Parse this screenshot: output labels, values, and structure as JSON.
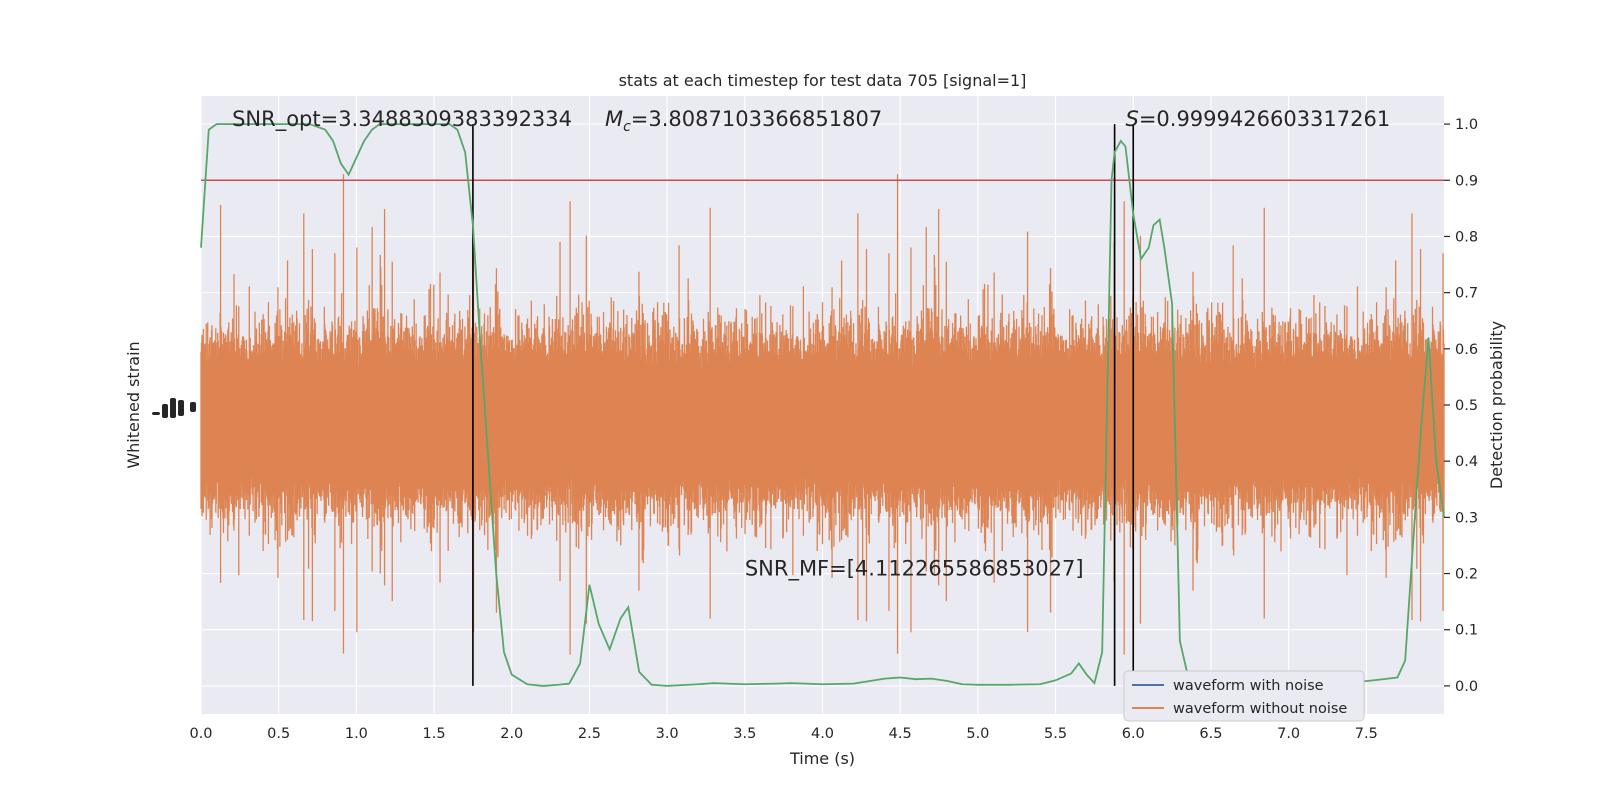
{
  "chart_data": {
    "type": "line",
    "title": "stats at each timestep for test data 705 [signal=1]",
    "xlabel": "Time (s)",
    "ylabel_left": "Whitened strain",
    "ylabel_right": "Detection probability",
    "xlim": [
      0.0,
      8.0
    ],
    "ylim_right": [
      -0.05,
      1.05
    ],
    "x_ticks": [
      "0.0",
      "0.5",
      "1.0",
      "1.5",
      "2.0",
      "2.5",
      "3.0",
      "3.5",
      "4.0",
      "4.5",
      "5.0",
      "5.5",
      "6.0",
      "6.5",
      "7.0",
      "7.5"
    ],
    "y_ticks_right": [
      "0.0",
      "0.1",
      "0.2",
      "0.3",
      "0.4",
      "0.5",
      "0.6",
      "0.7",
      "0.8",
      "0.9",
      "1.0"
    ],
    "grid": true,
    "legend_position": "lower-right",
    "annotations": [
      {
        "text": "SNR_opt=3.3488309383392334",
        "x": 0.2,
        "y": 1.0
      },
      {
        "text": "=3.8087103366851807",
        "prefix": "M",
        "sub": "c",
        "x": 2.6,
        "y": 1.0
      },
      {
        "text": "=0.9999426603317261",
        "prefix": "S",
        "x": 5.95,
        "y": 1.0
      },
      {
        "text": "SNR_MF=[4.112265586853027]",
        "x": 3.5,
        "y": 0.2
      }
    ],
    "threshold": {
      "y": 0.9,
      "color": "#c44e52"
    },
    "vlines": [
      1.75,
      5.88,
      6.0
    ],
    "series": [
      {
        "name": "waveform with noise",
        "color": "#4c72b0",
        "kind": "strain"
      },
      {
        "name": "waveform without noise",
        "color": "#dd8452",
        "kind": "strain"
      },
      {
        "color": "#55a868",
        "kind": "probability",
        "x": [
          0.0,
          0.05,
          0.1,
          0.2,
          0.3,
          0.4,
          0.5,
          0.6,
          0.7,
          0.8,
          0.85,
          0.9,
          0.95,
          1.0,
          1.05,
          1.1,
          1.15,
          1.2,
          1.3,
          1.4,
          1.5,
          1.6,
          1.65,
          1.7,
          1.75,
          1.8,
          1.85,
          1.9,
          1.95,
          2.0,
          2.1,
          2.2,
          2.3,
          2.37,
          2.44,
          2.5,
          2.56,
          2.63,
          2.7,
          2.75,
          2.82,
          2.9,
          3.0,
          3.2,
          3.3,
          3.5,
          3.7,
          3.8,
          4.0,
          4.2,
          4.4,
          4.5,
          4.6,
          4.7,
          4.8,
          4.9,
          5.0,
          5.2,
          5.4,
          5.5,
          5.6,
          5.65,
          5.7,
          5.75,
          5.8,
          5.86,
          5.88,
          5.92,
          5.95,
          6.0,
          6.05,
          6.1,
          6.13,
          6.17,
          6.2,
          6.25,
          6.3,
          6.35,
          6.45,
          6.55,
          6.65,
          6.8,
          7.0,
          7.3,
          7.55,
          7.7,
          7.75,
          7.8,
          7.85,
          7.9,
          7.95,
          8.0
        ],
        "values": [
          0.78,
          0.99,
          1.0,
          1.0,
          1.0,
          1.0,
          1.0,
          1.0,
          1.0,
          0.99,
          0.97,
          0.93,
          0.91,
          0.94,
          0.97,
          0.99,
          1.0,
          1.0,
          1.0,
          1.0,
          1.0,
          1.0,
          0.99,
          0.95,
          0.82,
          0.6,
          0.4,
          0.2,
          0.06,
          0.02,
          0.003,
          0.0,
          0.002,
          0.004,
          0.04,
          0.18,
          0.11,
          0.065,
          0.12,
          0.14,
          0.025,
          0.002,
          0.0,
          0.003,
          0.005,
          0.003,
          0.004,
          0.005,
          0.003,
          0.004,
          0.013,
          0.015,
          0.012,
          0.013,
          0.009,
          0.003,
          0.002,
          0.002,
          0.003,
          0.01,
          0.022,
          0.04,
          0.02,
          0.005,
          0.06,
          0.9,
          0.95,
          0.97,
          0.96,
          0.84,
          0.76,
          0.78,
          0.82,
          0.83,
          0.78,
          0.68,
          0.08,
          0.02,
          0.003,
          0.0,
          0.002,
          0.003,
          0.002,
          0.003,
          0.01,
          0.015,
          0.045,
          0.25,
          0.45,
          0.62,
          0.4,
          0.3
        ]
      }
    ]
  }
}
